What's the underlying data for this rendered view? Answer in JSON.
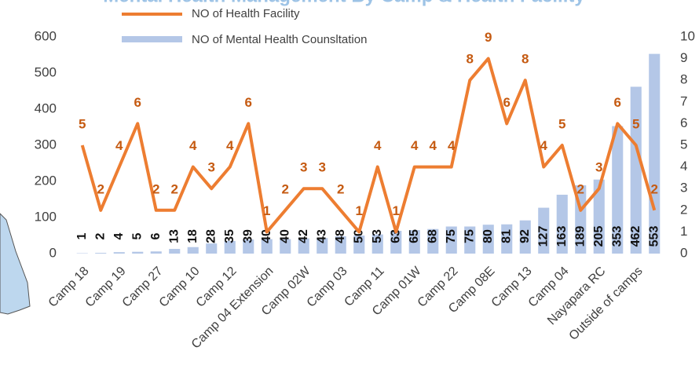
{
  "chart_data": {
    "type": "bar-line",
    "title": "Mental Health Management By Camp & Health Facility",
    "categories": [
      "Camp 18",
      null,
      "Camp 19",
      null,
      "Camp 27",
      null,
      "Camp 10",
      null,
      "Camp 12",
      null,
      "Camp 04 Extension",
      null,
      "Camp 02W",
      null,
      "Camp 03",
      null,
      "Camp 11",
      null,
      "Camp 01W",
      null,
      "Camp 22",
      null,
      "Camp 08E",
      null,
      "Camp 13",
      null,
      "Camp 04",
      null,
      "Nayapara RC",
      null,
      "Outside of camps",
      null
    ],
    "series": [
      {
        "name": "NO of Health Facility",
        "color": "#ed7d31",
        "axis": "y2",
        "values": [
          5,
          2,
          4,
          6,
          2,
          2,
          4,
          3,
          4,
          6,
          1,
          2,
          3,
          3,
          2,
          1,
          4,
          1,
          4,
          4,
          4,
          8,
          9,
          6,
          8,
          4,
          5,
          2,
          3,
          6,
          5,
          2
        ]
      },
      {
        "name": "NO of Mental Health Counsltation",
        "color": "#b4c7e7",
        "values": [
          1,
          2,
          4,
          5,
          6,
          13,
          18,
          28,
          35,
          39,
          40,
          40,
          42,
          43,
          48,
          50,
          53,
          63,
          65,
          68,
          75,
          75,
          80,
          81,
          92,
          127,
          163,
          189,
          205,
          353,
          462,
          553
        ]
      }
    ],
    "ylim": [
      0,
      600
    ],
    "yticks": [
      0,
      100,
      200,
      300,
      400,
      500,
      600
    ],
    "y2lim": [
      0,
      10
    ],
    "y2ticks": [
      0,
      1,
      2,
      3,
      4,
      5,
      6,
      7,
      8,
      9,
      10
    ]
  }
}
